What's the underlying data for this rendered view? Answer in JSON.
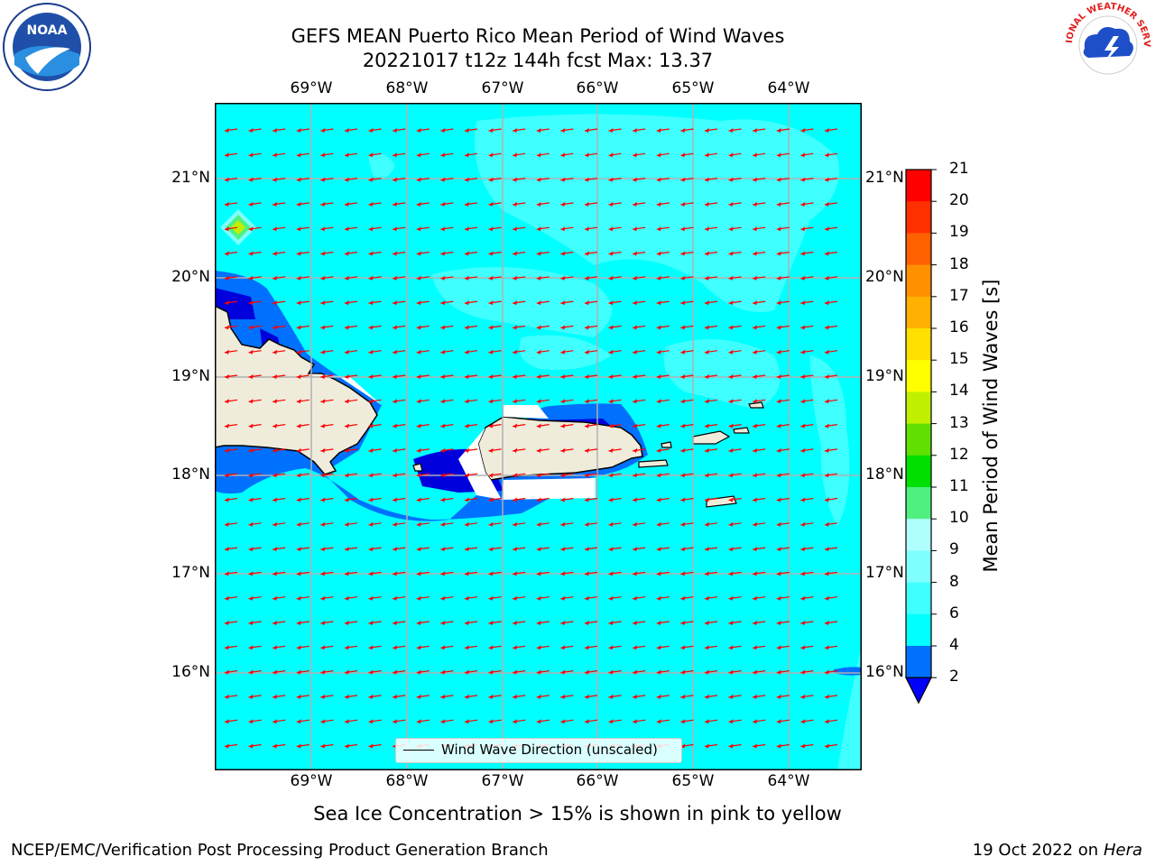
{
  "header": {
    "title_line1": "GEFS MEAN Puerto Rico Mean Period of Wind Waves",
    "title_line2": "20221017 t12z 144h fcst   Max: 13.37"
  },
  "logos": {
    "left": {
      "icon": "noaa-logo",
      "text": "NOAA"
    },
    "right": {
      "icon": "national-weather-service-logo",
      "text": "NATIONAL WEATHER SERVICE"
    }
  },
  "map": {
    "lon_labels": [
      "69°W",
      "68°W",
      "67°W",
      "66°W",
      "65°W",
      "64°W"
    ],
    "lat_labels": [
      "21°N",
      "20°N",
      "19°N",
      "18°N",
      "17°N",
      "16°N"
    ],
    "ocean_color": "#00ffff",
    "land_color": "#efecdc",
    "arrow_color": "#ff0000",
    "legend_label": "Wind Wave Direction (unscaled)"
  },
  "colorbar": {
    "label": "Mean Period of Wind Waves [s]",
    "ticks": [
      "2",
      "4",
      "6",
      "8",
      "9",
      "10",
      "11",
      "12",
      "13",
      "14",
      "15",
      "16",
      "17",
      "18",
      "19",
      "20",
      "21"
    ],
    "colors": [
      "#0000ff",
      "#0070ff",
      "#00ffff",
      "#40ffff",
      "#80ffff",
      "#b0ffff",
      "#50f080",
      "#00e000",
      "#60e000",
      "#c0f000",
      "#ffff00",
      "#ffe000",
      "#ffb000",
      "#ff9000",
      "#ff6000",
      "#ff3000",
      "#ff0000"
    ],
    "extend_min_color": "#0000ff"
  },
  "note": "Sea Ice Concentration > 15% is shown in pink to yellow",
  "footer": {
    "left": "NCEP/EMC/Verification Post Processing Product Generation Branch",
    "right_prefix": "19 Oct 2022 on ",
    "right_host": "Hera"
  }
}
